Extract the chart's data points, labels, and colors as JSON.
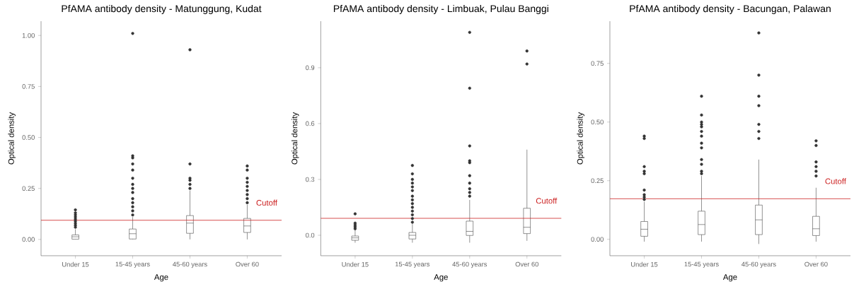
{
  "chart_data": [
    {
      "type": "box",
      "title": "PfAMA antibody density - Matunggung, Kudat",
      "xlabel": "Age",
      "ylabel": "Optical density",
      "categories": [
        "Under 15",
        "15-45 years",
        "45-60 years",
        "Over 60"
      ],
      "marker": "circle",
      "ylim": [
        -0.08,
        1.07
      ],
      "yticks": [
        {
          "value": 0,
          "label": "0.00"
        },
        {
          "value": 0.25,
          "label": "0.25"
        },
        {
          "value": 0.5,
          "label": "0.50"
        },
        {
          "value": 0.75,
          "label": "0.75"
        },
        {
          "value": 1,
          "label": "1.00"
        }
      ],
      "boxes": [
        {
          "low": 0.0,
          "q1": 0.001,
          "median": 0.013,
          "q3": 0.022,
          "high": 0.05,
          "outliers": [
            0.06,
            0.07,
            0.08,
            0.09,
            0.1,
            0.11,
            0.12,
            0.13,
            0.145
          ]
        },
        {
          "low": 0.0,
          "q1": 0.002,
          "median": 0.028,
          "q3": 0.051,
          "high": 0.11,
          "outliers": [
            0.12,
            0.14,
            0.16,
            0.18,
            0.2,
            0.23,
            0.25,
            0.27,
            0.3,
            0.34,
            0.37,
            0.4,
            0.41,
            1.01
          ]
        },
        {
          "low": 0.0,
          "q1": 0.03,
          "median": 0.08,
          "q3": 0.117,
          "high": 0.24,
          "outliers": [
            0.25,
            0.27,
            0.29,
            0.3,
            0.37,
            0.93
          ]
        },
        {
          "low": 0.0,
          "q1": 0.034,
          "median": 0.066,
          "q3": 0.103,
          "high": 0.17,
          "outliers": [
            0.18,
            0.2,
            0.22,
            0.24,
            0.26,
            0.28,
            0.3,
            0.34,
            0.36
          ]
        }
      ],
      "ref_lines": [
        {
          "axis": "y",
          "value": 0.094,
          "label": "Cutoff",
          "color": "#cc2222"
        }
      ]
    },
    {
      "type": "box",
      "title": "PfAMA antibody density - Limbuak, Pulau Banggi",
      "xlabel": "Age",
      "ylabel": "Optical density",
      "categories": [
        "Under 15",
        "15-45 years",
        "45-60 years",
        "Over 60"
      ],
      "marker": "circle",
      "ylim": [
        -0.11,
        1.15
      ],
      "yticks": [
        {
          "value": 0,
          "label": "0.0"
        },
        {
          "value": 0.3,
          "label": "0.3"
        },
        {
          "value": 0.6,
          "label": "0.6"
        },
        {
          "value": 0.9,
          "label": "0.9"
        }
      ],
      "boxes": [
        {
          "low": -0.04,
          "q1": -0.027,
          "median": -0.014,
          "q3": -0.004,
          "high": 0.03,
          "outliers": [
            0.035,
            0.045,
            0.055,
            0.065,
            0.115
          ]
        },
        {
          "low": -0.04,
          "q1": -0.02,
          "median": 0.0,
          "q3": 0.015,
          "high": 0.06,
          "outliers": [
            0.07,
            0.09,
            0.11,
            0.13,
            0.15,
            0.17,
            0.19,
            0.21,
            0.24,
            0.26,
            0.28,
            0.3,
            0.33,
            0.375
          ]
        },
        {
          "low": -0.04,
          "q1": -0.001,
          "median": 0.021,
          "q3": 0.076,
          "high": 0.19,
          "outliers": [
            0.21,
            0.23,
            0.25,
            0.28,
            0.32,
            0.39,
            0.4,
            0.48,
            0.79,
            1.09
          ]
        },
        {
          "low": -0.03,
          "q1": 0.009,
          "median": 0.043,
          "q3": 0.145,
          "high": 0.46,
          "outliers": [
            0.92,
            0.99
          ]
        }
      ],
      "ref_lines": [
        {
          "axis": "y",
          "value": 0.091,
          "label": "Cutoff",
          "color": "#cc2222"
        }
      ]
    },
    {
      "type": "box",
      "title": "PfAMA antibody density - Bacungan, Palawan",
      "xlabel": "Age",
      "ylabel": "Optical density",
      "categories": [
        "Under 15",
        "15-45 years",
        "45-60 years",
        "Over 60"
      ],
      "marker": "circle",
      "ylim": [
        -0.07,
        0.93
      ],
      "yticks": [
        {
          "value": 0,
          "label": "0.00"
        },
        {
          "value": 0.25,
          "label": "0.25"
        },
        {
          "value": 0.5,
          "label": "0.50"
        },
        {
          "value": 0.75,
          "label": "0.75"
        }
      ],
      "boxes": [
        {
          "low": -0.01,
          "q1": 0.013,
          "median": 0.043,
          "q3": 0.076,
          "high": 0.16,
          "outliers": [
            0.17,
            0.18,
            0.19,
            0.21,
            0.28,
            0.29,
            0.31,
            0.43,
            0.44
          ]
        },
        {
          "low": -0.01,
          "q1": 0.02,
          "median": 0.063,
          "q3": 0.12,
          "high": 0.27,
          "outliers": [
            0.28,
            0.29,
            0.32,
            0.34,
            0.39,
            0.41,
            0.44,
            0.46,
            0.48,
            0.49,
            0.5,
            0.53,
            0.61
          ]
        },
        {
          "low": -0.02,
          "q1": 0.02,
          "median": 0.083,
          "q3": 0.146,
          "high": 0.34,
          "outliers": [
            0.43,
            0.46,
            0.49,
            0.57,
            0.61,
            0.7,
            0.88
          ]
        },
        {
          "low": -0.01,
          "q1": 0.016,
          "median": 0.045,
          "q3": 0.098,
          "high": 0.22,
          "outliers": [
            0.27,
            0.29,
            0.31,
            0.33,
            0.4,
            0.42
          ]
        }
      ],
      "ref_lines": [
        {
          "axis": "y",
          "value": 0.173,
          "label": "Cutoff",
          "color": "#cc2222"
        }
      ]
    }
  ]
}
